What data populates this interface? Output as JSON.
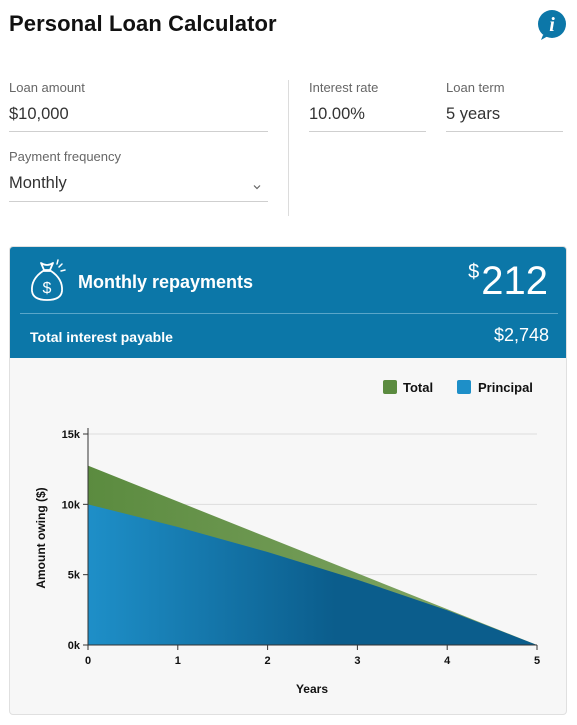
{
  "app": {
    "title": "Personal Loan Calculator"
  },
  "form": {
    "loan_amount": {
      "label": "Loan amount",
      "value": "$10,000"
    },
    "interest_rate": {
      "label": "Interest rate",
      "value": "10.00%"
    },
    "loan_term": {
      "label": "Loan term",
      "value": "5 years"
    },
    "payment_frequency": {
      "label": "Payment frequency",
      "value": "Monthly"
    }
  },
  "results": {
    "repayments_label": "Monthly repayments",
    "repayments_currency": "$",
    "repayments_value": "212",
    "total_interest_label": "Total interest payable",
    "total_interest_value": "$2,748"
  },
  "colors": {
    "accent": "#0c77a8",
    "total": "#5b8b3f",
    "principal": "#1e8fc8"
  },
  "chart_data": {
    "type": "area",
    "x": [
      0,
      1,
      2,
      3,
      4,
      5
    ],
    "series": [
      {
        "name": "Total",
        "values": [
          12748,
          10199,
          7649,
          5099,
          2550,
          0
        ],
        "color": "#5b8b3f"
      },
      {
        "name": "Principal",
        "values": [
          10000,
          8389,
          6609,
          4643,
          2471,
          0
        ],
        "color": "#1e8fc8"
      }
    ],
    "xlabel": "Years",
    "ylabel": "Amount owing ($)",
    "x_ticks": [
      "0",
      "1",
      "2",
      "3",
      "4",
      "5"
    ],
    "y_ticks": [
      "0k",
      "5k",
      "10k",
      "15k"
    ],
    "xlim": [
      0,
      5
    ],
    "ylim": [
      0,
      15000
    ],
    "grid": true,
    "legend": "top-right"
  }
}
